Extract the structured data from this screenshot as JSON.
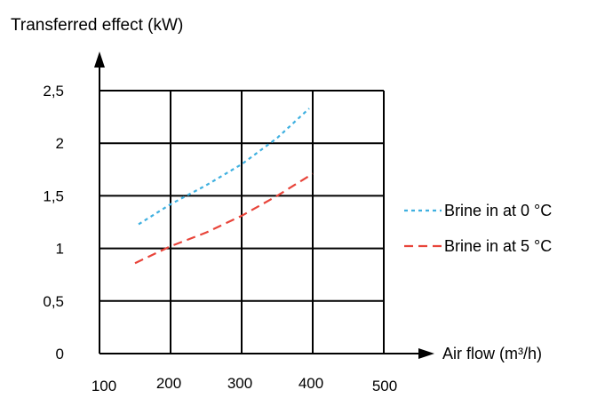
{
  "chart_data": {
    "type": "line",
    "title": "",
    "ylabel": "Transferred effect (kW)",
    "xlabel": "Air flow (m³/h)",
    "xlim": [
      100,
      500
    ],
    "ylim": [
      0,
      2.5
    ],
    "x_ticks": [
      "100",
      "200",
      "300",
      "400",
      "500"
    ],
    "y_ticks": [
      "0",
      "0,5",
      "1",
      "1,5",
      "2",
      "2,5"
    ],
    "grid": true,
    "legend_position": "right",
    "series": [
      {
        "name": "Brine in at 0 °C",
        "color": "#3fb0e0",
        "dash": "dotted",
        "x": [
          155,
          200,
          250,
          300,
          350,
          395
        ],
        "y": [
          1.23,
          1.42,
          1.6,
          1.8,
          2.05,
          2.33
        ]
      },
      {
        "name": "Brine in at 5 °C",
        "color": "#e8443a",
        "dash": "dashed",
        "x": [
          150,
          200,
          250,
          300,
          350,
          400
        ],
        "y": [
          0.86,
          1.02,
          1.15,
          1.31,
          1.5,
          1.71
        ]
      }
    ]
  }
}
